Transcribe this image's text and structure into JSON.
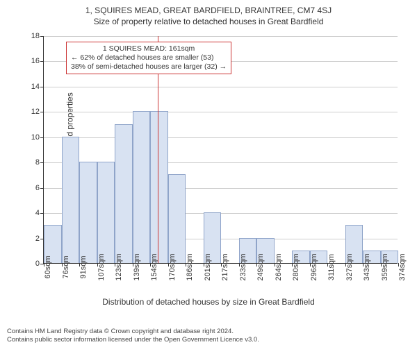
{
  "titles": {
    "main": "1, SQUIRES MEAD, GREAT BARDFIELD, BRAINTREE, CM7 4SJ",
    "sub": "Size of property relative to detached houses in Great Bardfield"
  },
  "axes": {
    "ylabel": "Number of detached properties",
    "xlabel": "Distribution of detached houses by size in Great Bardfield",
    "ylim": [
      0,
      18
    ],
    "ytick_step": 2,
    "yticks": [
      0,
      2,
      4,
      6,
      8,
      10,
      12,
      14,
      16,
      18
    ],
    "xticks": [
      "60sqm",
      "76sqm",
      "91sqm",
      "107sqm",
      "123sqm",
      "139sqm",
      "154sqm",
      "170sqm",
      "186sqm",
      "201sqm",
      "217sqm",
      "233sqm",
      "249sqm",
      "264sqm",
      "280sqm",
      "296sqm",
      "311sqm",
      "327sqm",
      "343sqm",
      "359sqm",
      "374sqm"
    ]
  },
  "histogram": {
    "type": "histogram",
    "bar_fill": "#d8e2f2",
    "bar_border": "#8fa4c9",
    "grid_color": "#cccccc",
    "background_color": "#ffffff",
    "values": [
      3,
      10,
      8,
      8,
      11,
      12,
      12,
      7,
      0,
      4,
      0,
      2,
      2,
      0,
      1,
      1,
      0,
      3,
      1,
      1
    ]
  },
  "reference_line": {
    "position_sqm": 161,
    "xmin_sqm": 60,
    "xmax_sqm": 374,
    "color": "#cc3333"
  },
  "annotation": {
    "border_color": "#cc3333",
    "lines": [
      "1 SQUIRES MEAD: 161sqm",
      "← 62% of detached houses are smaller (53)",
      "38% of semi-detached houses are larger (32) →"
    ]
  },
  "footer": {
    "line1": "Contains HM Land Registry data © Crown copyright and database right 2024.",
    "line2": "Contains public sector information licensed under the Open Government Licence v3.0."
  },
  "style": {
    "title_fontsize": 12,
    "label_fontsize": 12,
    "tick_fontsize": 11,
    "annotation_fontsize": 10.5,
    "footer_fontsize": 9.5
  }
}
